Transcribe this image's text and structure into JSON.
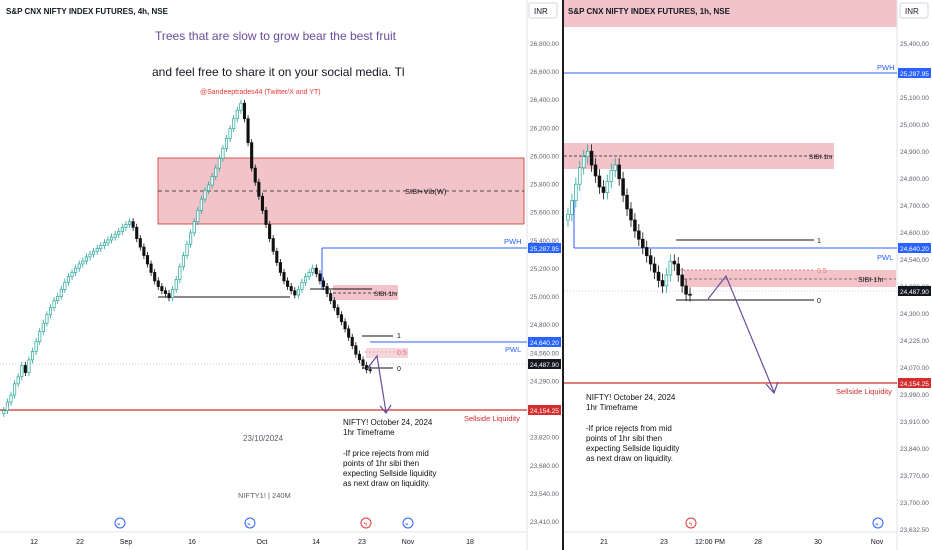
{
  "left_panel": {
    "header": "S&P CNX NIFTY INDEX FUTURES, 4h, NSE",
    "currency": "INR",
    "quote": "Trees that are slow to grow bear the best fruit",
    "share_text": "and feel free to share it on your social media. Tl",
    "handle": "@Sandeeptrades44 (Twitter/X and YT)",
    "watermark_date": "23/10/2024",
    "watermark_symbol": "NIFTY1! | 240M",
    "note": [
      "NIFTY! October 24, 2024",
      "1hr Timeframe",
      "",
      "-If price rejects from mid",
      "points of 1hr sibi then",
      "expecting Sellside liquidity",
      "as next draw on liquidity."
    ],
    "labels": {
      "sibi_vib": "SIBI+Vib(W)",
      "sibi_1hr": "SIBI-1hr",
      "pwh": "PWH",
      "pwl": "PWL",
      "sellside": "Sellside Liquidity",
      "fib_1": "1",
      "fib_05": "0.5",
      "fib_0": "0"
    },
    "y_ticks": [
      "26,800.00",
      "26,600.00",
      "26,400.00",
      "26,200.00",
      "26,000.00",
      "25,800.00",
      "25,600.00",
      "25,400.00",
      "25,200.00",
      "25,000.00",
      "24,800.00",
      "24,560.00",
      "24,290.00",
      "23,970.00",
      "23,820.00",
      "23,680.00",
      "23,540.00",
      "23,410.00"
    ],
    "x_ticks": [
      "12",
      "22",
      "Sep",
      "16",
      "Oct",
      "14",
      "23",
      "Nov",
      "18"
    ],
    "price_tags": {
      "pwh": "25,287.95",
      "pwl": "24,640.20",
      "last": "24,487.90",
      "sellside": "24,154.25"
    }
  },
  "right_panel": {
    "header": "S&P CNX NIFTY INDEX FUTURES, 1h, NSE",
    "currency": "INR",
    "note": [
      "NIFTY! October 24, 2024",
      "1hr Timeframe",
      "",
      "-If price rejects from mid",
      "points of 1hr sibi then",
      "expecting Sellside liquidity",
      "as next draw on liquidity."
    ],
    "labels": {
      "sibi_1hr": "SIBI-1hr",
      "pwh": "PWH",
      "pwl": "PWL",
      "sellside": "Sellside Liquidity",
      "fib_1": "1",
      "fib_05": "0.5",
      "fib_0": "0"
    },
    "y_ticks": [
      "25,400.00",
      "25,200.00",
      "25,100.00",
      "25,000.00",
      "24,900.00",
      "24,800.00",
      "24,700.00",
      "24,600.00",
      "24,540.00",
      "24,380.00",
      "24,300.00",
      "24,225.00",
      "24,070.00",
      "23,990.00",
      "23,910.00",
      "23,840.00",
      "23,770.00",
      "23,700.00",
      "23,632.50"
    ],
    "x_ticks": [
      "21",
      "23",
      "12:00 PM",
      "28",
      "30",
      "Nov"
    ],
    "price_tags": {
      "pwh": "25,287.95",
      "pwl": "24,640.20",
      "last": "24,487.90",
      "sellside": "24,154.25"
    }
  },
  "colors": {
    "up": "#26a69a",
    "down": "#111111",
    "zone": "#e9a3ad",
    "pwh": "#2962ff",
    "sellside": "#d32f2f",
    "arrow": "#6a4c9c",
    "quote": "#6a4c9c"
  },
  "chart_data": [
    {
      "type": "candlestick",
      "title": "S&P CNX NIFTY INDEX FUTURES, 4h, NSE",
      "y_unit": "INR",
      "ylim": [
        23410,
        26800
      ],
      "levels": {
        "pwh": 25287.95,
        "pwl": 24640.2,
        "last": 24487.9,
        "sellside": 24154.25
      },
      "zones": [
        {
          "name": "SIBI+Vib(W)",
          "from": 25400,
          "to": 25950
        },
        {
          "name": "SIBI-1hr",
          "from": 24950,
          "to": 25060
        }
      ],
      "close_series": [
        24200,
        24260,
        24310,
        24390,
        24440,
        24520,
        24470,
        24560,
        24620,
        24690,
        24760,
        24820,
        24880,
        24930,
        24980,
        25010,
        25060,
        25110,
        25150,
        25180,
        25210,
        25240,
        25260,
        25290,
        25310,
        25330,
        25350,
        25370,
        25390,
        25410,
        25430,
        25450,
        25470,
        25500,
        25520,
        25540,
        25500,
        25420,
        25360,
        25300,
        25240,
        25180,
        25120,
        25080,
        25050,
        25030,
        25000,
        25060,
        25130,
        25220,
        25300,
        25380,
        25460,
        25540,
        25620,
        25700,
        25760,
        25800,
        25860,
        25920,
        25990,
        26060,
        26130,
        26200,
        26270,
        26330,
        26380,
        26270,
        26100,
        25920,
        25820,
        25720,
        25620,
        25520,
        25420,
        25330,
        25250,
        25180,
        25120,
        25080,
        25050,
        25020,
        25060,
        25110,
        25150,
        25180,
        25210,
        25170,
        25120,
        25080,
        25030,
        24980,
        24930,
        24880,
        24830,
        24780,
        24720,
        24660,
        24600,
        24560,
        24520,
        24490,
        24488
      ]
    },
    {
      "type": "candlestick",
      "title": "S&P CNX NIFTY INDEX FUTURES, 1h, NSE",
      "y_unit": "INR",
      "ylim": [
        23632.5,
        25400
      ],
      "levels": {
        "pwh": 25287.95,
        "pwl": 24640.2,
        "last": 24487.9,
        "sellside": 24154.25
      },
      "zones": [
        {
          "name": "SIBI-1hr",
          "from": 24910,
          "to": 25040
        }
      ],
      "close_series": [
        24780,
        24830,
        24890,
        24950,
        24990,
        25010,
        24960,
        24920,
        24880,
        24860,
        24900,
        24940,
        24960,
        24910,
        24850,
        24800,
        24760,
        24720,
        24690,
        24660,
        24630,
        24600,
        24570,
        24540,
        24520,
        24560,
        24610,
        24600,
        24560,
        24520,
        24490,
        24488
      ]
    }
  ]
}
